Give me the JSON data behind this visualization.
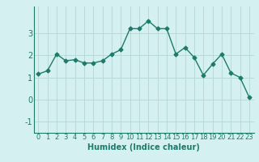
{
  "x": [
    0,
    1,
    2,
    3,
    4,
    5,
    6,
    7,
    8,
    9,
    10,
    11,
    12,
    13,
    14,
    15,
    16,
    17,
    18,
    19,
    20,
    21,
    22,
    23
  ],
  "y": [
    1.15,
    1.3,
    2.05,
    1.75,
    1.8,
    1.65,
    1.65,
    1.75,
    2.05,
    2.25,
    3.2,
    3.2,
    3.55,
    3.2,
    3.2,
    2.05,
    2.35,
    1.9,
    1.1,
    1.6,
    2.05,
    1.2,
    1.0,
    0.1
  ],
  "line_color": "#1e7b6b",
  "marker": "D",
  "marker_size": 2.5,
  "bg_color": "#d4f0f0",
  "grid_color": "#b8dada",
  "xlabel": "Humidex (Indice chaleur)",
  "ylim": [
    -1.5,
    4.2
  ],
  "xlim": [
    -0.5,
    23.5
  ],
  "yticks": [
    -1,
    0,
    1,
    2,
    3
  ],
  "xticks": [
    0,
    1,
    2,
    3,
    4,
    5,
    6,
    7,
    8,
    9,
    10,
    11,
    12,
    13,
    14,
    15,
    16,
    17,
    18,
    19,
    20,
    21,
    22,
    23
  ],
  "tick_fontsize": 6,
  "xlabel_fontsize": 7,
  "linewidth": 1.0
}
